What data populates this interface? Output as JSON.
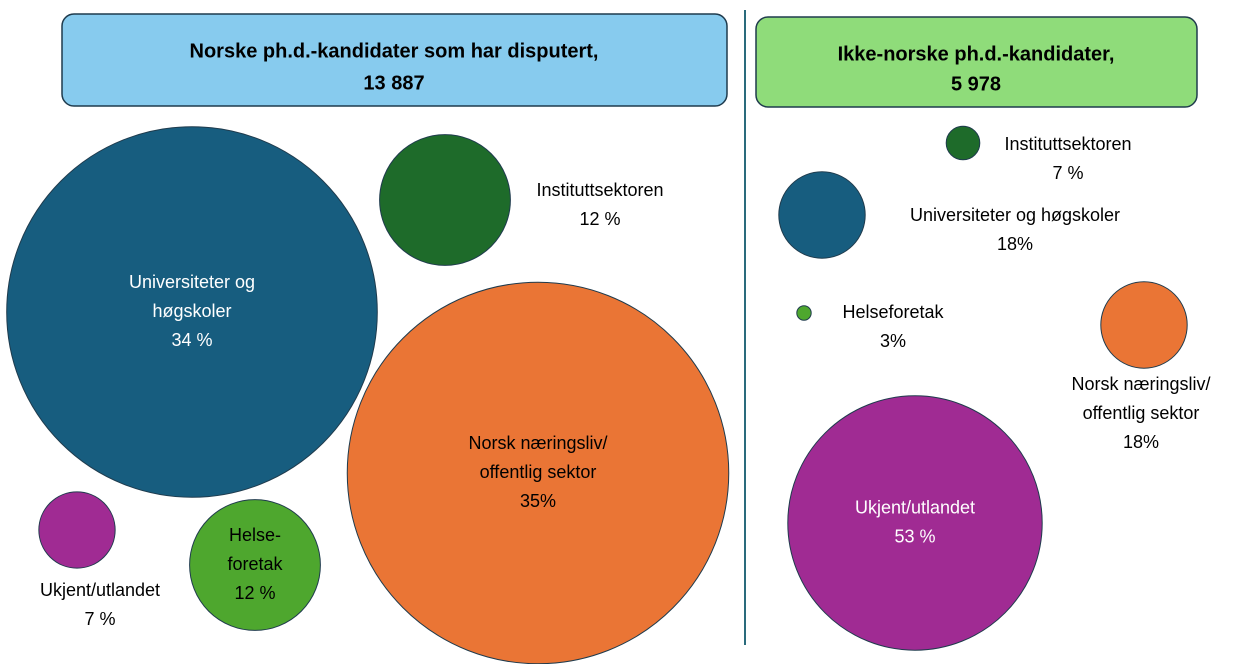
{
  "chart_data": [
    {
      "type": "bubble",
      "title": "Norske ph.d.-kandidater som har disputert,",
      "subtitle": "13 887",
      "categories": [
        [
          "Universiteter og",
          "høgskoler"
        ],
        [
          "Instituttsektoren"
        ],
        [
          "Norsk næringsliv/",
          "offentlig sektor"
        ],
        [
          "Ukjent/utlandet"
        ],
        [
          "Helse-",
          "foretak"
        ]
      ],
      "values": [
        34,
        12,
        35,
        7,
        12
      ],
      "value_labels": [
        "34 %",
        "12 %",
        "35%",
        "7 %",
        "12 %"
      ],
      "colors": [
        "#175d7f",
        "#1e6b2a",
        "#ea7535",
        "#a02b93",
        "#4ea72e"
      ]
    },
    {
      "type": "bubble",
      "title": "Ikke-norske ph.d.-kandidater,",
      "subtitle": "5 978",
      "categories": [
        [
          "Instituttsektoren"
        ],
        [
          "Universiteter og høgskoler"
        ],
        [
          "Helseforetak"
        ],
        [
          "Norsk næringsliv/",
          "offentlig sektor"
        ],
        [
          "Ukjent/utlandet"
        ]
      ],
      "values": [
        7,
        18,
        3,
        18,
        53
      ],
      "value_labels": [
        "7 %",
        "18%",
        "3%",
        "18%",
        "53 %"
      ],
      "colors": [
        "#1e6b2a",
        "#175d7f",
        "#4ea72e",
        "#ea7535",
        "#a02b93"
      ]
    }
  ]
}
